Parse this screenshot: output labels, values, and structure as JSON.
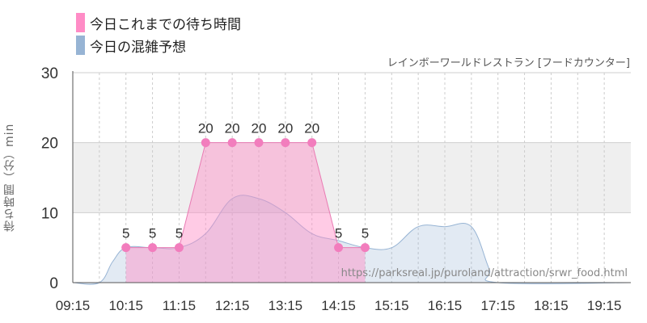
{
  "legend": {
    "wait": {
      "label": "今日これまでの待ち時間",
      "color": "#ff8cc6"
    },
    "crowd": {
      "label": "今日の混雑予想",
      "color": "#97b4d4"
    }
  },
  "subtitle": "レインボーワールドレストラン [フードカウンター]",
  "ylabel": "待ち時間（分）min",
  "watermark": "https://parksreal.jp/puroland/attraction/srwr_food.html",
  "chart_data": {
    "type": "area",
    "xlim": [
      "09:15",
      "19:45"
    ],
    "ylim": [
      0,
      30
    ],
    "yticks": [
      0,
      10,
      20,
      30
    ],
    "xticks": [
      "09:15",
      "10:15",
      "11:15",
      "12:15",
      "13:15",
      "14:15",
      "15:15",
      "16:15",
      "17:15",
      "18:15",
      "19:15"
    ],
    "shaded_band": [
      10,
      20
    ],
    "series": [
      {
        "name": "今日これまでの待ち時間",
        "type": "line",
        "color": "#ff8cc6",
        "points": [
          {
            "x": "10:15",
            "y": 5
          },
          {
            "x": "10:45",
            "y": 5
          },
          {
            "x": "11:15",
            "y": 5
          },
          {
            "x": "11:45",
            "y": 20
          },
          {
            "x": "12:15",
            "y": 20
          },
          {
            "x": "12:45",
            "y": 20
          },
          {
            "x": "13:15",
            "y": 20
          },
          {
            "x": "13:45",
            "y": 20
          },
          {
            "x": "14:15",
            "y": 5
          },
          {
            "x": "14:45",
            "y": 5
          }
        ]
      },
      {
        "name": "今日の混雑予想",
        "type": "area",
        "color": "#97b4d4",
        "points": [
          {
            "x": "09:15",
            "y": 0
          },
          {
            "x": "09:45",
            "y": 0
          },
          {
            "x": "10:00",
            "y": 3
          },
          {
            "x": "10:15",
            "y": 5
          },
          {
            "x": "10:45",
            "y": 5
          },
          {
            "x": "11:15",
            "y": 5
          },
          {
            "x": "11:45",
            "y": 7
          },
          {
            "x": "12:15",
            "y": 12
          },
          {
            "x": "12:45",
            "y": 12
          },
          {
            "x": "13:15",
            "y": 10
          },
          {
            "x": "13:45",
            "y": 7
          },
          {
            "x": "14:15",
            "y": 6
          },
          {
            "x": "14:45",
            "y": 5
          },
          {
            "x": "15:15",
            "y": 5
          },
          {
            "x": "15:45",
            "y": 8
          },
          {
            "x": "16:15",
            "y": 8
          },
          {
            "x": "16:45",
            "y": 8
          },
          {
            "x": "17:05",
            "y": 2
          },
          {
            "x": "17:15",
            "y": 0
          },
          {
            "x": "19:45",
            "y": 0
          }
        ]
      }
    ]
  }
}
